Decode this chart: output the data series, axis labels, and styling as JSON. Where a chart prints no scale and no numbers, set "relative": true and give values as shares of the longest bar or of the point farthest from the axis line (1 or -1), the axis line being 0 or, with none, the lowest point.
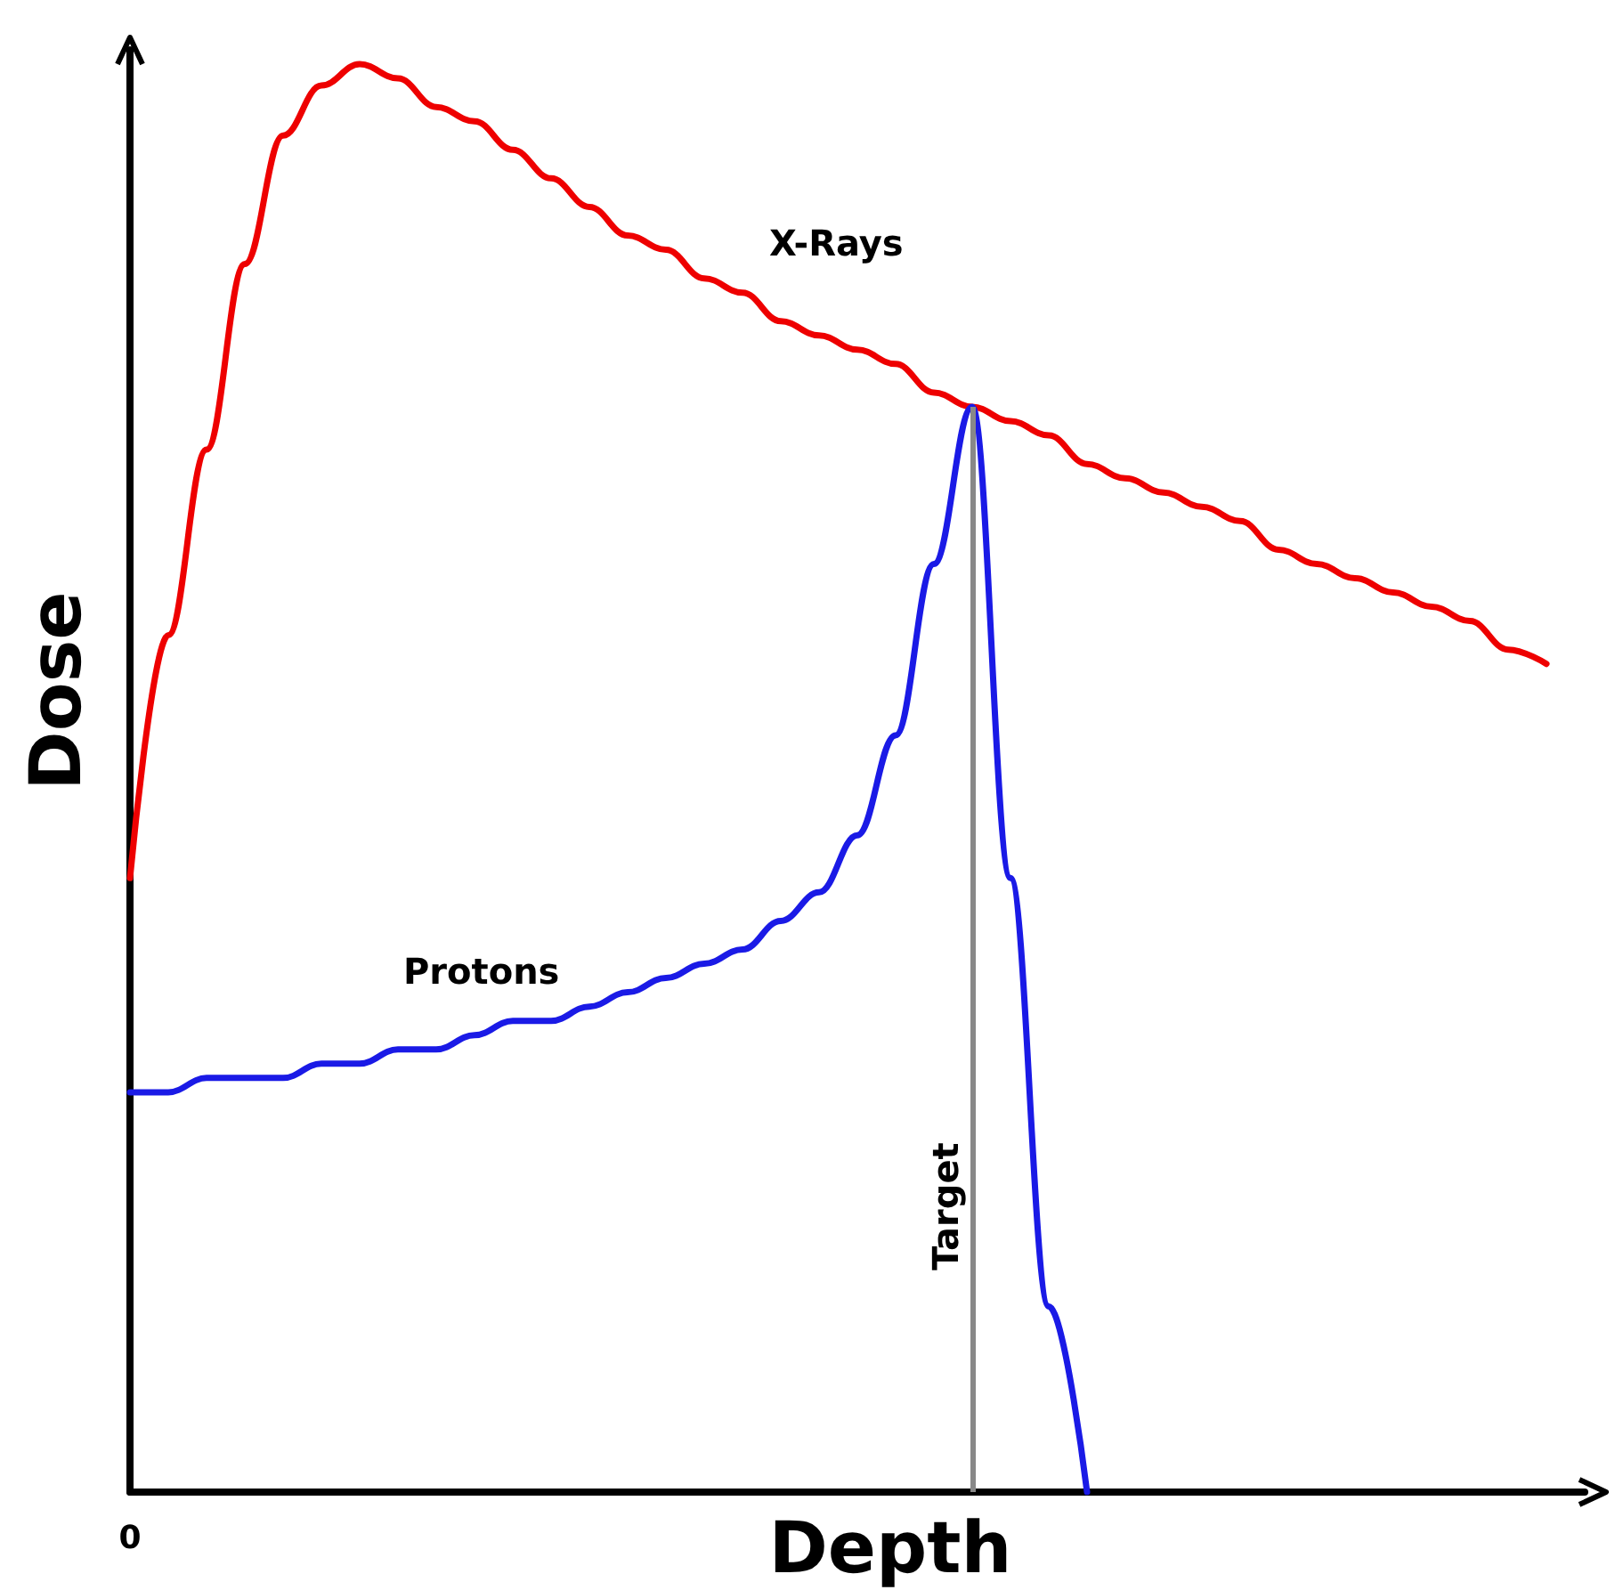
{
  "chart_data": {
    "type": "line",
    "xlabel": "Depth",
    "ylabel": "Dose",
    "relative": true,
    "grid": false,
    "legend": false,
    "marker": "none",
    "line_style": "solid",
    "categories": [
      null,
      null,
      null,
      null,
      null,
      null,
      null,
      null,
      null,
      null,
      null,
      null,
      null,
      null,
      null,
      null,
      null,
      null,
      null,
      null,
      null,
      null,
      null,
      null,
      null,
      null,
      null,
      null,
      null,
      null,
      null,
      null,
      null,
      null,
      null,
      null,
      null,
      null,
      null
    ],
    "series": [
      {
        "name": "X-Rays",
        "color": "#ee0000",
        "values": [
          0.43,
          0.6,
          0.73,
          0.86,
          0.95,
          0.985,
          1,
          0.99,
          0.97,
          0.96,
          0.94,
          0.92,
          0.9,
          0.88,
          0.87,
          0.85,
          0.84,
          0.82,
          0.81,
          0.8,
          0.79,
          0.77,
          0.76,
          0.75,
          0.74,
          0.72,
          0.71,
          0.7,
          0.69,
          0.68,
          0.66,
          0.65,
          0.64,
          0.63,
          0.62,
          0.61,
          0.59,
          0.58,
          null
        ]
      },
      {
        "name": "Protons",
        "color": "#1a1ae6",
        "values": [
          0.28,
          0.28,
          0.29,
          0.29,
          0.29,
          0.3,
          0.3,
          0.31,
          0.31,
          0.32,
          0.33,
          0.33,
          0.34,
          0.35,
          0.36,
          0.37,
          0.38,
          0.4,
          0.42,
          0.46,
          0.53,
          0.65,
          0.76,
          0.43,
          0.13,
          0,
          null,
          null,
          null,
          null,
          null,
          null,
          null,
          null,
          null,
          null,
          null,
          null,
          null
        ]
      }
    ],
    "annotations": [
      "0",
      "Target"
    ]
  }
}
